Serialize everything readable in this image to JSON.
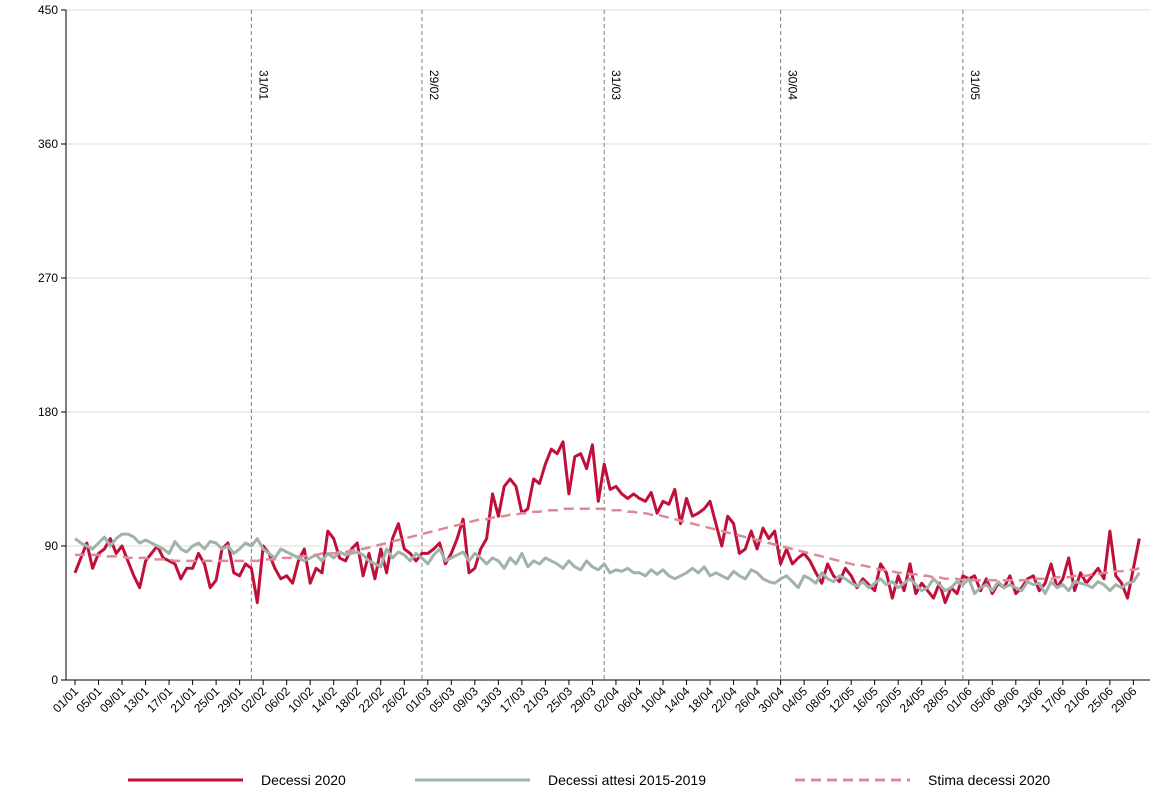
{
  "chart_data": {
    "type": "line",
    "categories": [
      "01/01",
      null,
      null,
      null,
      "05/01",
      null,
      null,
      null,
      "09/01",
      null,
      null,
      null,
      "13/01",
      null,
      null,
      null,
      "17/01",
      null,
      null,
      null,
      "21/01",
      null,
      null,
      null,
      "25/01",
      null,
      null,
      null,
      "29/01",
      null,
      null,
      null,
      "02/02",
      null,
      null,
      null,
      "06/02",
      null,
      null,
      null,
      "10/02",
      null,
      null,
      null,
      "14/02",
      null,
      null,
      null,
      "18/02",
      null,
      null,
      null,
      "22/02",
      null,
      null,
      null,
      "26/02",
      null,
      null,
      null,
      "01/03",
      null,
      null,
      null,
      "05/03",
      null,
      null,
      null,
      "09/03",
      null,
      null,
      null,
      "13/03",
      null,
      null,
      null,
      "17/03",
      null,
      null,
      null,
      "21/03",
      null,
      null,
      null,
      "25/03",
      null,
      null,
      null,
      "29/03",
      null,
      null,
      null,
      "02/04",
      null,
      null,
      null,
      "06/04",
      null,
      null,
      null,
      "10/04",
      null,
      null,
      null,
      "14/04",
      null,
      null,
      null,
      "18/04",
      null,
      null,
      null,
      "22/04",
      null,
      null,
      null,
      "26/04",
      null,
      null,
      null,
      "30/04",
      null,
      null,
      null,
      "04/05",
      null,
      null,
      null,
      "08/05",
      null,
      null,
      null,
      "12/05",
      null,
      null,
      null,
      "16/05",
      null,
      null,
      null,
      "20/05",
      null,
      null,
      null,
      "24/05",
      null,
      null,
      null,
      "28/05",
      null,
      null,
      null,
      "01/06",
      null,
      null,
      null,
      "05/06",
      null,
      null,
      null,
      "09/06",
      null,
      null,
      null,
      "13/06",
      null,
      null,
      null,
      "17/06",
      null,
      null,
      null,
      "21/06",
      null,
      null,
      null,
      "25/06",
      null,
      null,
      null,
      "29/06",
      null
    ],
    "series": [
      {
        "name": "Decessi 2020",
        "color": "#c0103a",
        "dashed": false,
        "values": [
          72,
          82,
          92,
          75,
          85,
          88,
          95,
          85,
          90,
          80,
          70,
          62,
          80,
          85,
          90,
          82,
          80,
          78,
          68,
          75,
          75,
          85,
          78,
          62,
          67,
          88,
          92,
          72,
          70,
          78,
          75,
          52,
          90,
          85,
          75,
          68,
          70,
          65,
          80,
          88,
          65,
          75,
          72,
          100,
          95,
          82,
          80,
          88,
          92,
          70,
          85,
          68,
          88,
          72,
          95,
          105,
          88,
          85,
          80,
          85,
          85,
          88,
          92,
          78,
          85,
          95,
          108,
          72,
          75,
          88,
          95,
          125,
          110,
          130,
          135,
          130,
          112,
          115,
          135,
          132,
          145,
          155,
          152,
          160,
          125,
          150,
          152,
          142,
          158,
          120,
          145,
          128,
          130,
          125,
          122,
          125,
          122,
          120,
          126,
          112,
          120,
          118,
          128,
          105,
          122,
          110,
          112,
          115,
          120,
          105,
          90,
          110,
          105,
          85,
          88,
          100,
          88,
          102,
          95,
          100,
          78,
          88,
          78,
          82,
          85,
          80,
          72,
          65,
          78,
          70,
          66,
          75,
          70,
          62,
          68,
          64,
          60,
          78,
          72,
          55,
          70,
          60,
          78,
          58,
          65,
          60,
          55,
          65,
          52,
          62,
          58,
          70,
          68,
          70,
          60,
          68,
          58,
          65,
          62,
          70,
          58,
          62,
          68,
          70,
          60,
          65,
          78,
          62,
          68,
          82,
          60,
          72,
          65,
          70,
          75,
          68,
          100,
          70,
          65,
          55,
          75,
          95
        ]
      },
      {
        "name": "Decessi attesi 2015-2019",
        "color": "#9fb3ab",
        "dashed": false,
        "values": [
          95,
          92,
          90,
          88,
          92,
          96,
          90,
          95,
          98,
          98,
          96,
          92,
          94,
          92,
          90,
          88,
          85,
          93,
          88,
          86,
          90,
          92,
          88,
          93,
          92,
          88,
          90,
          85,
          88,
          92,
          90,
          95,
          88,
          85,
          82,
          88,
          86,
          84,
          82,
          80,
          82,
          84,
          80,
          85,
          82,
          86,
          84,
          85,
          86,
          84,
          80,
          78,
          76,
          88,
          82,
          86,
          84,
          80,
          85,
          82,
          78,
          84,
          88,
          80,
          82,
          84,
          86,
          80,
          85,
          82,
          78,
          82,
          80,
          75,
          82,
          78,
          85,
          76,
          80,
          78,
          82,
          80,
          78,
          75,
          80,
          76,
          74,
          80,
          76,
          74,
          78,
          72,
          74,
          73,
          75,
          72,
          72,
          70,
          74,
          71,
          74,
          70,
          68,
          70,
          72,
          75,
          72,
          76,
          70,
          72,
          70,
          68,
          73,
          70,
          68,
          74,
          72,
          68,
          66,
          65,
          68,
          70,
          66,
          62,
          70,
          68,
          65,
          72,
          68,
          66,
          70,
          68,
          65,
          63,
          66,
          62,
          65,
          68,
          64,
          66,
          62,
          65,
          68,
          64,
          60,
          62,
          68,
          64,
          60,
          62,
          66,
          64,
          68,
          58,
          62,
          64,
          60,
          66,
          62,
          64,
          62,
          60,
          66,
          64,
          65,
          58,
          66,
          62,
          64,
          60,
          66,
          65,
          64,
          62,
          66,
          64,
          60,
          64,
          62,
          65,
          66,
          72
        ]
      },
      {
        "name": "Stima decessi 2020",
        "color": "#e08898",
        "dashed": true,
        "values": [
          84,
          84,
          84,
          84,
          84,
          83,
          83,
          83,
          83,
          82,
          82,
          82,
          82,
          81,
          81,
          81,
          81,
          80,
          80,
          80,
          80,
          80,
          80,
          80,
          80,
          80,
          80,
          80,
          80,
          80,
          80,
          80,
          81,
          81,
          81,
          82,
          82,
          82,
          83,
          83,
          84,
          84,
          85,
          85,
          85,
          86,
          86,
          87,
          88,
          88,
          89,
          90,
          91,
          92,
          93,
          94,
          95,
          96,
          97,
          98,
          99,
          100,
          101,
          102,
          103,
          104,
          105,
          106,
          107,
          108,
          108,
          109,
          110,
          110,
          111,
          111,
          112,
          112,
          113,
          113,
          114,
          114,
          114,
          115,
          115,
          115,
          115,
          115,
          115,
          115,
          115,
          114,
          114,
          114,
          113,
          113,
          112,
          112,
          111,
          111,
          110,
          109,
          108,
          107,
          106,
          105,
          104,
          103,
          102,
          101,
          100,
          99,
          98,
          97,
          96,
          95,
          94,
          93,
          92,
          91,
          90,
          89,
          88,
          87,
          86,
          85,
          84,
          83,
          82,
          81,
          80,
          79,
          78,
          77,
          77,
          76,
          75,
          74,
          74,
          73,
          72,
          72,
          71,
          71,
          70,
          70,
          69,
          69,
          68,
          68,
          68,
          67,
          67,
          67,
          67,
          67,
          67,
          67,
          67,
          67,
          67,
          67,
          67,
          68,
          68,
          68,
          68,
          69,
          69,
          69,
          70,
          70,
          70,
          71,
          71,
          72,
          72,
          73,
          73,
          74,
          74,
          75
        ]
      }
    ],
    "ylim": [
      0,
      450
    ],
    "yticks": [
      0,
      90,
      180,
      270,
      360,
      450
    ],
    "grid": true,
    "legend": "bottom",
    "annotations": [
      {
        "text": "31/01",
        "index": 30
      },
      {
        "text": "29/02",
        "index": 59
      },
      {
        "text": "31/03",
        "index": 90
      },
      {
        "text": "30/04",
        "index": 120
      },
      {
        "text": "31/05",
        "index": 151
      }
    ]
  }
}
